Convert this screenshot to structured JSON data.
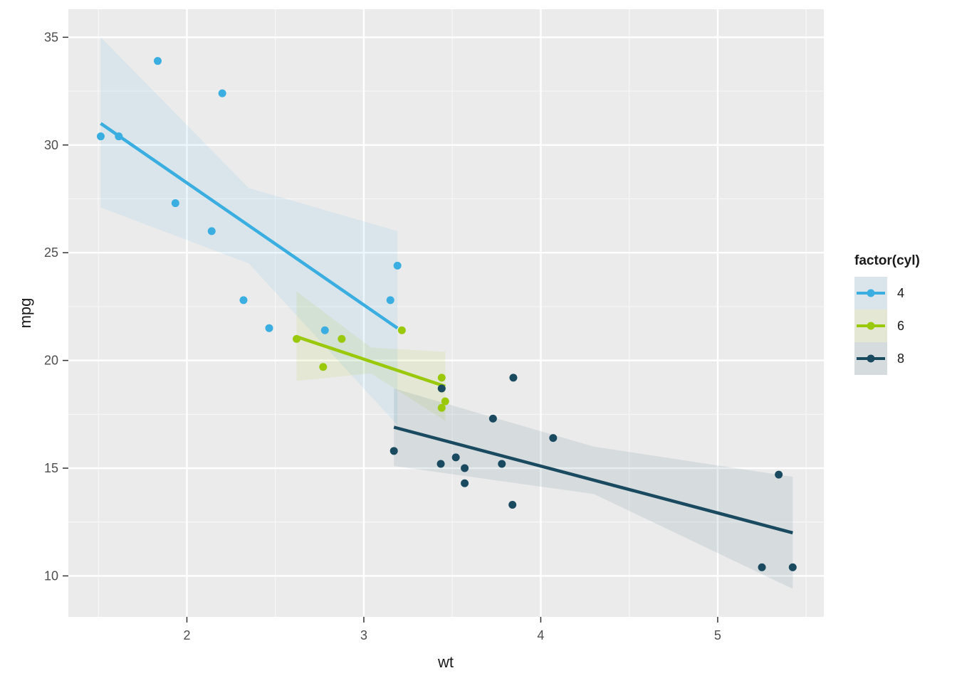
{
  "chart_data": {
    "type": "scatter",
    "title": "",
    "xlabel": "wt",
    "ylabel": "mpg",
    "xlim": [
      1.33,
      5.6
    ],
    "ylim": [
      8.1,
      36.3
    ],
    "x_ticks": [
      "2",
      "3",
      "4",
      "5"
    ],
    "y_ticks": [
      "10",
      "15",
      "20",
      "25",
      "30",
      "35"
    ],
    "grid": true,
    "legend": {
      "title": "factor(cyl)",
      "position": "right"
    },
    "series": [
      {
        "name": "4",
        "color": "#3aaee0",
        "points": [
          [
            2.32,
            22.8
          ],
          [
            3.19,
            24.4
          ],
          [
            3.15,
            22.8
          ],
          [
            2.2,
            32.4
          ],
          [
            1.615,
            30.4
          ],
          [
            1.835,
            33.9
          ],
          [
            2.465,
            21.5
          ],
          [
            1.935,
            27.3
          ],
          [
            2.14,
            26.0
          ],
          [
            1.513,
            30.4
          ],
          [
            2.78,
            21.4
          ]
        ],
        "fit": {
          "x": [
            1.513,
            3.19
          ],
          "y": [
            31.0,
            21.5
          ]
        },
        "band": {
          "x": [
            1.513,
            2.35,
            3.19
          ],
          "lower": [
            27.1,
            24.5,
            17.0
          ],
          "upper": [
            35.0,
            28.0,
            26.0
          ]
        }
      },
      {
        "name": "6",
        "color": "#9ac90c",
        "points": [
          [
            2.62,
            21.0
          ],
          [
            2.875,
            21.0
          ],
          [
            3.215,
            21.4
          ],
          [
            3.44,
            18.7
          ],
          [
            3.44,
            19.2
          ],
          [
            3.46,
            18.1
          ],
          [
            3.44,
            17.8
          ],
          [
            2.77,
            19.7
          ]
        ],
        "fit": {
          "x": [
            2.62,
            3.46
          ],
          "y": [
            21.1,
            18.8
          ]
        },
        "band": {
          "x": [
            2.62,
            3.04,
            3.46
          ],
          "lower": [
            19.05,
            19.4,
            17.2
          ],
          "upper": [
            23.2,
            20.6,
            20.4
          ]
        }
      },
      {
        "name": "8",
        "color": "#1a4a60",
        "points": [
          [
            3.44,
            18.7
          ],
          [
            3.57,
            14.3
          ],
          [
            4.07,
            16.4
          ],
          [
            3.73,
            17.3
          ],
          [
            3.78,
            15.2
          ],
          [
            5.25,
            10.4
          ],
          [
            5.424,
            10.4
          ],
          [
            5.345,
            14.7
          ],
          [
            3.52,
            15.5
          ],
          [
            3.435,
            15.2
          ],
          [
            3.84,
            13.3
          ],
          [
            3.845,
            19.2
          ],
          [
            3.17,
            15.8
          ],
          [
            3.57,
            15.0
          ]
        ],
        "fit": {
          "x": [
            3.17,
            5.424
          ],
          "y": [
            16.9,
            12.0
          ]
        },
        "band": {
          "x": [
            3.17,
            4.3,
            5.424
          ],
          "lower": [
            15.1,
            13.8,
            9.4
          ],
          "upper": [
            18.7,
            16.0,
            14.6
          ]
        }
      }
    ]
  }
}
